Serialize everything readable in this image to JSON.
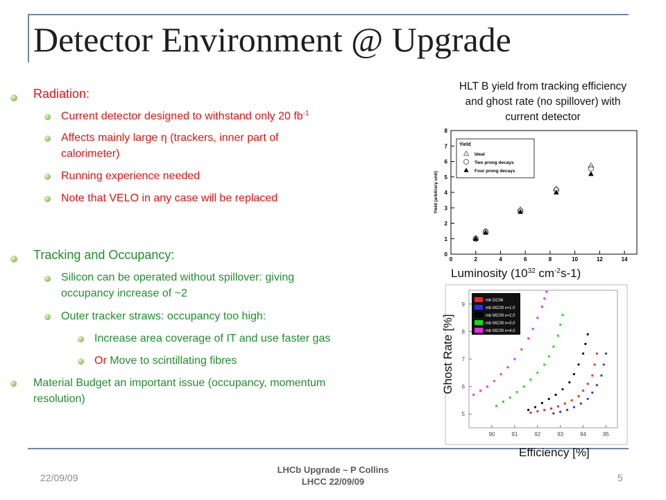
{
  "title": "Detector Environment @ Upgrade",
  "bullets": {
    "radiation": {
      "label": "Radiation:",
      "items": [
        {
          "text": "Current detector designed to withstand only 20 fb",
          "sup": "-1"
        },
        {
          "text": "Affects mainly large η (trackers, inner part of"
        },
        {
          "text": "calorimeter)"
        },
        {
          "text": "Running experience needed"
        },
        {
          "text": "Note that VELO in any case will be replaced"
        }
      ]
    },
    "tracking": {
      "label": "Tracking and Occupancy:",
      "items": [
        {
          "text": "Silicon can be operated without spillover: giving"
        },
        {
          "text": "occupancy increase of ~2"
        },
        {
          "text": "Outer tracker straws: occupancy too high:"
        }
      ],
      "subitems": [
        {
          "text": "Increase area coverage of IT and use faster gas"
        },
        {
          "prefix": "Or",
          "text": " Move to scintillating fibres"
        }
      ]
    },
    "material": {
      "line1": "Material Budget an important issue (occupancy, momentum",
      "line2": "resolution)"
    }
  },
  "caption": {
    "line1": "HLT B yield from tracking efficiency",
    "line2": "and ghost rate (no spillover) with",
    "line3": "current detector"
  },
  "luminosity_label": {
    "prefix": "Luminosity (10",
    "sup1": "32",
    "mid": " cm",
    "sup2": "-2",
    "suffix": "s-1)"
  },
  "ghost_rate_label": "Ghost Rate [%]",
  "efficiency_label": "Efficiency [%]",
  "footer": {
    "date": "22/09/09",
    "line1": "LHCb Upgrade – P Collins",
    "line2": "LHCC 22/09/09",
    "page": "5"
  },
  "colors": {
    "red_text": "#e31212",
    "green_text": "#1f8e2c",
    "frame": "#6e86a6"
  },
  "chart_data": [
    {
      "type": "scatter",
      "ylabel": "Yield (arbitrary unit)",
      "xlim": [
        0,
        15
      ],
      "ylim": [
        0,
        8
      ],
      "x_ticks": [
        "0",
        "2",
        "4",
        "6",
        "8",
        "10",
        "12",
        "14"
      ],
      "y_ticks": [
        "0",
        "1",
        "2",
        "3",
        "4",
        "5",
        "6",
        "7",
        "8"
      ],
      "legend_title": "Yield",
      "legend": [
        "Ideal",
        "Two prong decays",
        "Four prong decays"
      ],
      "series": [
        {
          "name": "Ideal",
          "x": [
            2,
            2.8,
            5.6,
            8.5,
            11.3
          ],
          "y": [
            1.05,
            1.5,
            2.9,
            4.25,
            5.75
          ]
        },
        {
          "name": "Two prong decays",
          "x": [
            2,
            2.8,
            5.6,
            8.5,
            11.3
          ],
          "y": [
            1.0,
            1.45,
            2.8,
            4.15,
            5.55
          ]
        },
        {
          "name": "Four prong decays",
          "x": [
            2,
            2.8,
            5.6,
            8.5,
            11.3
          ],
          "y": [
            1.0,
            1.4,
            2.75,
            4.0,
            5.2
          ]
        }
      ]
    },
    {
      "type": "scatter",
      "xlim": [
        89,
        95.5
      ],
      "ylim": [
        4.5,
        9.5
      ],
      "x_ticks": [
        "90",
        "91",
        "92",
        "93",
        "94",
        "95"
      ],
      "y_ticks": [
        "5",
        "6",
        "7",
        "8",
        "9"
      ],
      "legend": [
        "mb DC06",
        "mb MC09 ν=1.0",
        "mb MC09 ν=2.0",
        "mb MC09 ν=3.0",
        "mb MC09 ν=4.0"
      ],
      "series": [
        {
          "name": "mb DC06",
          "color": "#ff2020",
          "x": [
            91.7,
            92.0,
            92.3,
            92.6,
            92.9,
            93.2,
            93.5,
            93.8,
            94.0,
            94.2,
            94.4,
            94.5,
            94.6
          ],
          "y": [
            5.05,
            5.1,
            5.15,
            5.2,
            5.28,
            5.38,
            5.5,
            5.65,
            5.85,
            6.1,
            6.4,
            6.8,
            7.2
          ]
        },
        {
          "name": "mb MC09 ν=1.0",
          "color": "#2030ff",
          "x": [
            92.7,
            93.0,
            93.3,
            93.6,
            93.9,
            94.2,
            94.4,
            94.6,
            94.8,
            94.9,
            95.0
          ],
          "y": [
            5.02,
            5.08,
            5.15,
            5.25,
            5.38,
            5.55,
            5.78,
            6.05,
            6.4,
            6.8,
            7.2
          ]
        },
        {
          "name": "mb MC09 ν=2.0",
          "color": "#000000",
          "x": [
            91.6,
            91.9,
            92.2,
            92.5,
            92.8,
            93.1,
            93.4,
            93.6,
            93.8,
            94.0,
            94.1,
            94.2
          ],
          "y": [
            5.15,
            5.25,
            5.4,
            5.55,
            5.7,
            5.9,
            6.15,
            6.45,
            6.8,
            7.2,
            7.55,
            7.9
          ]
        },
        {
          "name": "mb MC09 ν=3.0",
          "color": "#10e010",
          "x": [
            90.2,
            90.5,
            90.8,
            91.1,
            91.4,
            91.7,
            92.0,
            92.3,
            92.5,
            92.7,
            92.9,
            93.0,
            93.1
          ],
          "y": [
            5.3,
            5.45,
            5.6,
            5.8,
            6.0,
            6.25,
            6.5,
            6.8,
            7.1,
            7.45,
            7.85,
            8.25,
            8.6
          ]
        },
        {
          "name": "mb MC09 ν=4.0",
          "color": "#ff20ff",
          "x": [
            89.2,
            89.5,
            89.8,
            90.1,
            90.4,
            90.7,
            91.0,
            91.3,
            91.6,
            91.8,
            92.0,
            92.2,
            92.3,
            92.4
          ],
          "y": [
            5.7,
            5.85,
            6.0,
            6.2,
            6.45,
            6.7,
            7.0,
            7.35,
            7.75,
            8.1,
            8.5,
            8.9,
            9.2,
            9.45
          ]
        }
      ]
    }
  ]
}
